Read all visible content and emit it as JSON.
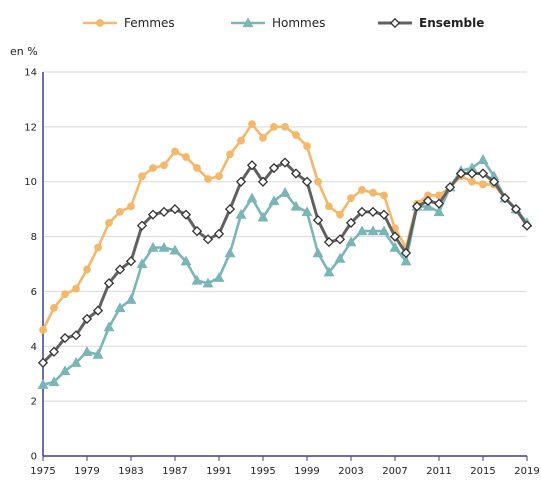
{
  "chart_data": {
    "type": "line",
    "ylabel": "en %",
    "ylim": [
      0,
      14
    ],
    "yticks": [
      0,
      2,
      4,
      6,
      8,
      10,
      12,
      14
    ],
    "xlim": [
      1975,
      2019
    ],
    "xticks": [
      1975,
      1979,
      1983,
      1987,
      1991,
      1995,
      1999,
      2003,
      2007,
      2011,
      2015,
      2019
    ],
    "grid": true,
    "legend_position": "top",
    "x": [
      1975,
      1976,
      1977,
      1978,
      1979,
      1980,
      1981,
      1982,
      1983,
      1984,
      1985,
      1986,
      1987,
      1988,
      1989,
      1990,
      1991,
      1992,
      1993,
      1994,
      1995,
      1996,
      1997,
      1998,
      1999,
      2000,
      2001,
      2002,
      2003,
      2004,
      2005,
      2006,
      2007,
      2008,
      2009,
      2010,
      2011,
      2012,
      2013,
      2014,
      2015,
      2016,
      2017,
      2018,
      2019
    ],
    "series": [
      {
        "name": "Femmes",
        "color": "#f5b769",
        "marker": "circle",
        "values": [
          4.6,
          5.4,
          5.9,
          6.1,
          6.8,
          7.6,
          8.5,
          8.9,
          9.1,
          10.2,
          10.5,
          10.6,
          11.1,
          10.9,
          10.5,
          10.1,
          10.2,
          11.0,
          11.5,
          12.1,
          11.6,
          12.0,
          12.0,
          11.7,
          11.3,
          10.0,
          9.1,
          8.8,
          9.4,
          9.7,
          9.6,
          9.5,
          8.3,
          7.6,
          9.2,
          9.5,
          9.5,
          9.8,
          10.2,
          10.0,
          9.9,
          9.9,
          9.4,
          9.0,
          8.4
        ]
      },
      {
        "name": "Hommes",
        "color": "#7ab5b8",
        "marker": "triangle",
        "values": [
          2.6,
          2.7,
          3.1,
          3.4,
          3.8,
          3.7,
          4.7,
          5.4,
          5.7,
          7.0,
          7.6,
          7.6,
          7.5,
          7.1,
          6.4,
          6.3,
          6.5,
          7.4,
          8.8,
          9.4,
          8.7,
          9.3,
          9.6,
          9.1,
          8.9,
          7.4,
          6.7,
          7.2,
          7.8,
          8.2,
          8.2,
          8.2,
          7.6,
          7.1,
          9.1,
          9.1,
          8.9,
          9.8,
          10.4,
          10.5,
          10.8,
          10.2,
          9.4,
          9.0,
          8.5
        ]
      },
      {
        "name": "Ensemble",
        "color": "#616161",
        "marker": "diamond",
        "values": [
          3.4,
          3.8,
          4.3,
          4.4,
          5.0,
          5.3,
          6.3,
          6.8,
          7.1,
          8.4,
          8.8,
          8.9,
          9.0,
          8.8,
          8.2,
          7.9,
          8.1,
          9.0,
          10.0,
          10.6,
          10.0,
          10.5,
          10.7,
          10.3,
          10.0,
          8.6,
          7.8,
          7.9,
          8.5,
          8.9,
          8.9,
          8.8,
          8.0,
          7.4,
          9.1,
          9.3,
          9.2,
          9.8,
          10.3,
          10.3,
          10.3,
          10.0,
          9.4,
          9.0,
          8.4
        ]
      }
    ]
  }
}
